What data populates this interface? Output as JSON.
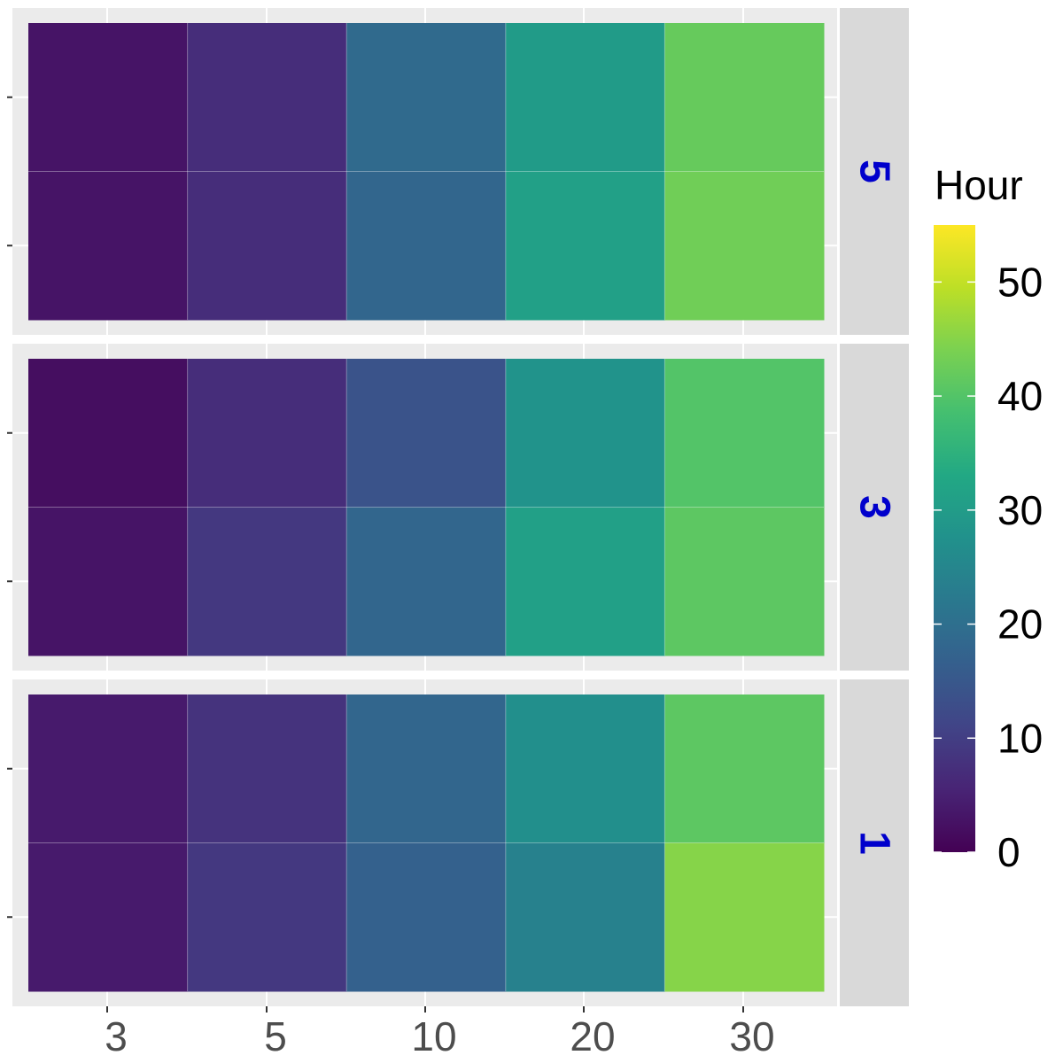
{
  "chart_data": {
    "type": "heatmap",
    "x_categories": [
      "3",
      "5",
      "10",
      "20",
      "30"
    ],
    "y_tick_labels": [
      "",
      ""
    ],
    "facets": [
      {
        "label": "5",
        "rows": [
          [
            3,
            7,
            19,
            30,
            42
          ],
          [
            3,
            7,
            18,
            31,
            43
          ]
        ]
      },
      {
        "label": "3",
        "rows": [
          [
            2,
            7,
            14,
            28,
            40
          ],
          [
            3,
            9,
            18,
            31,
            41
          ]
        ]
      },
      {
        "label": "1",
        "rows": [
          [
            4,
            8,
            18,
            27,
            41
          ],
          [
            4,
            9,
            17,
            24,
            45
          ]
        ]
      }
    ],
    "legend": {
      "title": "Hour",
      "ticks": [
        0,
        10,
        20,
        30,
        40,
        50
      ],
      "range": [
        0,
        55
      ]
    },
    "colorscale": "viridis",
    "grid": true,
    "legend_position": "right",
    "colors": {
      "panel_bg": "#ebebeb",
      "strip_bg": "#d9d9d9",
      "strip_text": "#0000cc",
      "grid": "#ffffff"
    }
  }
}
